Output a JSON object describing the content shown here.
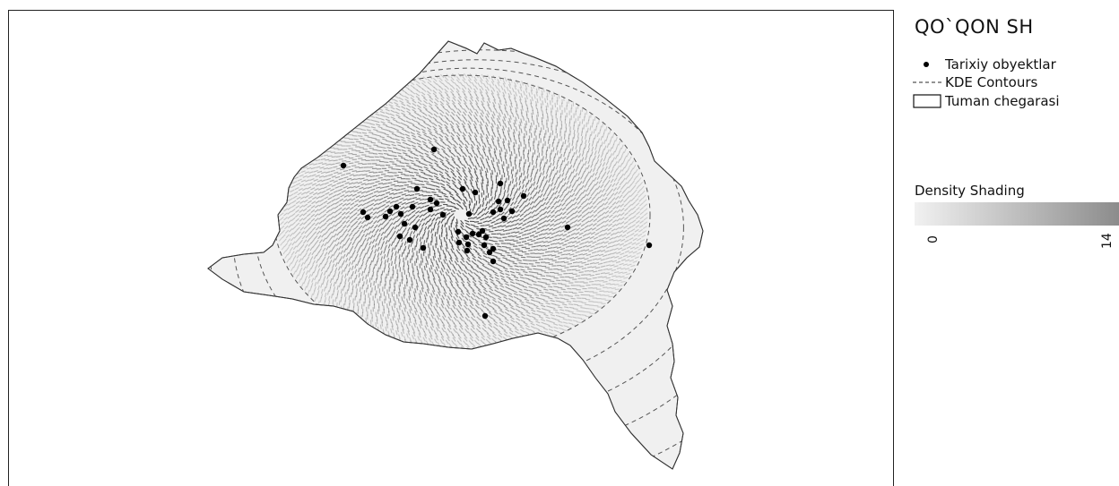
{
  "map": {
    "colors": {
      "district_fill": "#f0f0f0",
      "district_stroke": "#333333",
      "contour_stroke": "#555555",
      "hatch_stroke": "#3a3a3a",
      "point_fill": "#000000"
    }
  },
  "legend": {
    "title": "QO`QON SH",
    "items": [
      {
        "symbol": "point",
        "label": "Tarixiy obyektlar"
      },
      {
        "symbol": "dashed-line",
        "label": "KDE Contours"
      },
      {
        "symbol": "polygon",
        "label": "Tuman chegarasi"
      }
    ],
    "density": {
      "title": "Density Shading",
      "min_label": "0",
      "max_label": "14",
      "color_low": "#f1f1f1",
      "color_high": "#8c8c8c"
    }
  }
}
